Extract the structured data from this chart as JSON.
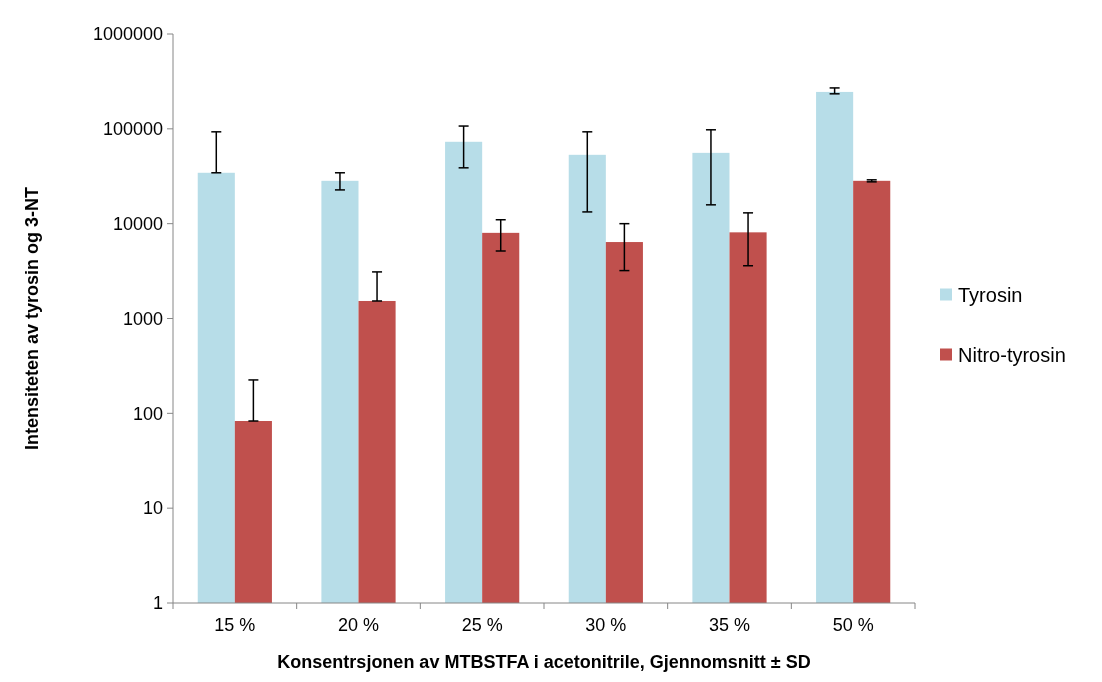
{
  "chart_data": {
    "type": "bar",
    "xlabel": "Konsentrsjonen av MTBSTFA i acetonitrile, Gjennomsnitt ± SD",
    "ylabel": "Intensiteten av tyrosin og 3-NT",
    "categories": [
      "15 %",
      "20 %",
      "25 %",
      "30 %",
      "35 %",
      "50 %"
    ],
    "series": [
      {
        "name": "Tyrosin",
        "color": "#b7dde8",
        "values": [
          34400,
          28300,
          73000,
          53200,
          55800,
          245000
        ],
        "errors": [
          [
            34400,
            93000
          ],
          [
            22700,
            34400
          ],
          [
            38800,
            107000
          ],
          [
            13300,
            93000
          ],
          [
            15800,
            97700
          ],
          [
            234000,
            270000
          ]
        ]
      },
      {
        "name": "Nitro-tyrosin",
        "color": "#c0504d",
        "values": [
          83,
          1530,
          8000,
          6400,
          8100,
          28300
        ],
        "errors": [
          [
            83,
            225
          ],
          [
            1530,
            3100
          ],
          [
            5150,
            11000
          ],
          [
            3200,
            10000
          ],
          [
            3600,
            13000
          ],
          [
            27600,
            29000
          ]
        ]
      }
    ],
    "log": "y",
    "ylim": [
      1,
      1000000
    ],
    "yticks": [
      1,
      10,
      100,
      1000,
      10000,
      100000,
      1000000
    ],
    "legend": "right",
    "grid": false
  }
}
